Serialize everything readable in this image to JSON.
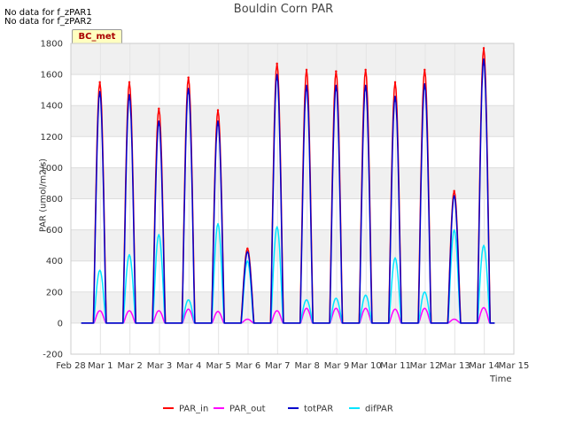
{
  "chart_data": {
    "type": "line",
    "title": "Bouldin Corn PAR",
    "notices": [
      "No data for f_zPAR1",
      "No data for f_zPAR2"
    ],
    "site_badge": "BC_met",
    "xlabel": "Time",
    "ylabel": "PAR (umol/m2/s)",
    "ylim": [
      -200,
      1800
    ],
    "yticks": [
      -200,
      0,
      200,
      400,
      600,
      800,
      1000,
      1200,
      1400,
      1600,
      1800
    ],
    "xlim": [
      0,
      15
    ],
    "xticks": [
      {
        "v": 0,
        "label": "Feb 28"
      },
      {
        "v": 1,
        "label": "Mar 1"
      },
      {
        "v": 2,
        "label": "Mar 2"
      },
      {
        "v": 3,
        "label": "Mar 3"
      },
      {
        "v": 4,
        "label": "Mar 4"
      },
      {
        "v": 5,
        "label": "Mar 5"
      },
      {
        "v": 6,
        "label": "Mar 6"
      },
      {
        "v": 7,
        "label": "Mar 7"
      },
      {
        "v": 8,
        "label": "Mar 8"
      },
      {
        "v": 9,
        "label": "Mar 9"
      },
      {
        "v": 10,
        "label": "Mar 10"
      },
      {
        "v": 11,
        "label": "Mar 11"
      },
      {
        "v": 12,
        "label": "Mar 12"
      },
      {
        "v": 13,
        "label": "Mar 13"
      },
      {
        "v": 14,
        "label": "Mar 14"
      },
      {
        "v": 15,
        "label": "Mar 15"
      }
    ],
    "data_range": [
      0.35,
      14.35
    ],
    "daily_peaks": {
      "days": [
        1,
        2,
        3,
        4,
        5,
        6,
        7,
        8,
        9,
        10,
        11,
        12,
        13,
        14
      ],
      "PAR_in": [
        1550,
        1550,
        1380,
        1580,
        1370,
        480,
        1670,
        1630,
        1620,
        1630,
        1550,
        1630,
        850,
        1770
      ],
      "PAR_out": [
        80,
        80,
        80,
        90,
        75,
        25,
        80,
        95,
        95,
        95,
        90,
        95,
        25,
        100
      ],
      "totPAR": [
        1490,
        1470,
        1300,
        1510,
        1300,
        460,
        1600,
        1530,
        1530,
        1530,
        1460,
        1540,
        820,
        1700
      ],
      "difPAR": [
        340,
        440,
        570,
        150,
        640,
        400,
        620,
        150,
        160,
        180,
        420,
        200,
        600,
        500
      ]
    },
    "series": [
      {
        "name": "PAR_in",
        "color": "#ff0000"
      },
      {
        "name": "PAR_out",
        "color": "#ff00ff"
      },
      {
        "name": "totPAR",
        "color": "#0000cc"
      },
      {
        "name": "difPAR",
        "color": "#00e5ff"
      }
    ],
    "legend_position": "bottom-center",
    "grid": true
  }
}
